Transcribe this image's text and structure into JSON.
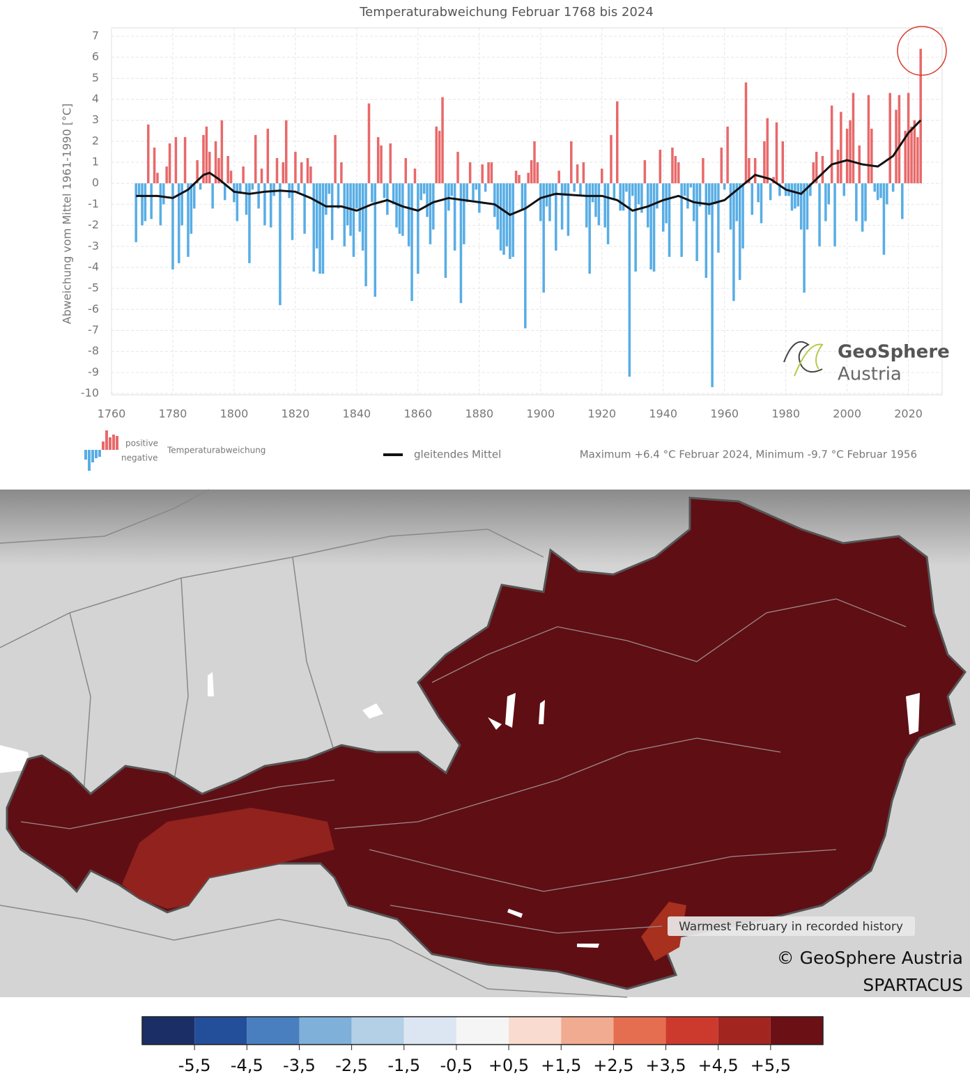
{
  "chart_data": {
    "type": "bar",
    "title": "Temperaturabweichung Februar 1768 bis 2024",
    "y_label": "Abweichung vom Mittel 1961-1990 [°C]",
    "note": "Maximum +6.4 °C Februar 2024, Minimum -9.7 °C Februar 1956",
    "logo_text": "GeoSphere",
    "logo_subtext": "Austria",
    "xlim": [
      1760,
      2031
    ],
    "xticks": [
      1760,
      1780,
      1800,
      1820,
      1840,
      1860,
      1880,
      1900,
      1920,
      1940,
      1960,
      1980,
      2000,
      2020
    ],
    "ylim": [
      -10,
      7
    ],
    "yticks": [
      -10,
      -9,
      -8,
      -7,
      -6,
      -5,
      -4,
      -3,
      -2,
      -1,
      0,
      1,
      2,
      3,
      4,
      5,
      6,
      7
    ],
    "grid": true,
    "series": [
      {
        "name": "Temperaturabweichung",
        "positive_label": "positive",
        "negative_label": "negative",
        "positive_color": "#e8696a",
        "negative_color": "#58ade5",
        "x": [
          1768,
          1769,
          1770,
          1771,
          1772,
          1773,
          1774,
          1775,
          1776,
          1777,
          1778,
          1779,
          1780,
          1781,
          1782,
          1783,
          1784,
          1785,
          1786,
          1787,
          1788,
          1789,
          1790,
          1791,
          1792,
          1793,
          1794,
          1795,
          1796,
          1797,
          1798,
          1799,
          1800,
          1801,
          1802,
          1803,
          1804,
          1805,
          1806,
          1807,
          1808,
          1809,
          1810,
          1811,
          1812,
          1813,
          1814,
          1815,
          1816,
          1817,
          1818,
          1819,
          1820,
          1821,
          1822,
          1823,
          1824,
          1825,
          1826,
          1827,
          1828,
          1829,
          1830,
          1831,
          1832,
          1833,
          1834,
          1835,
          1836,
          1837,
          1838,
          1839,
          1840,
          1841,
          1842,
          1843,
          1844,
          1845,
          1846,
          1847,
          1848,
          1849,
          1850,
          1851,
          1852,
          1853,
          1854,
          1855,
          1856,
          1857,
          1858,
          1859,
          1860,
          1861,
          1862,
          1863,
          1864,
          1865,
          1866,
          1867,
          1868,
          1869,
          1870,
          1871,
          1872,
          1873,
          1874,
          1875,
          1876,
          1877,
          1878,
          1879,
          1880,
          1881,
          1882,
          1883,
          1884,
          1885,
          1886,
          1887,
          1888,
          1889,
          1890,
          1891,
          1892,
          1893,
          1894,
          1895,
          1896,
          1897,
          1898,
          1899,
          1900,
          1901,
          1902,
          1903,
          1904,
          1905,
          1906,
          1907,
          1908,
          1909,
          1910,
          1911,
          1912,
          1913,
          1914,
          1915,
          1916,
          1917,
          1918,
          1919,
          1920,
          1921,
          1922,
          1923,
          1924,
          1925,
          1926,
          1927,
          1928,
          1929,
          1930,
          1931,
          1932,
          1933,
          1934,
          1935,
          1936,
          1937,
          1938,
          1939,
          1940,
          1941,
          1942,
          1943,
          1944,
          1945,
          1946,
          1947,
          1948,
          1949,
          1950,
          1951,
          1952,
          1953,
          1954,
          1955,
          1956,
          1957,
          1958,
          1959,
          1960,
          1961,
          1962,
          1963,
          1964,
          1965,
          1966,
          1967,
          1968,
          1969,
          1970,
          1971,
          1972,
          1973,
          1974,
          1975,
          1976,
          1977,
          1978,
          1979,
          1980,
          1981,
          1982,
          1983,
          1984,
          1985,
          1986,
          1987,
          1988,
          1989,
          1990,
          1991,
          1992,
          1993,
          1994,
          1995,
          1996,
          1997,
          1998,
          1999,
          2000,
          2001,
          2002,
          2003,
          2004,
          2005,
          2006,
          2007,
          2008,
          2009,
          2010,
          2011,
          2012,
          2013,
          2014,
          2015,
          2016,
          2017,
          2018,
          2019,
          2020,
          2021,
          2022,
          2023,
          2024
        ],
        "values": [
          -2.8,
          -0.6,
          -2.0,
          -1.8,
          2.8,
          -1.7,
          1.7,
          0.5,
          -2.0,
          -1.0,
          0.8,
          1.9,
          -4.1,
          2.2,
          -3.8,
          -2.0,
          2.2,
          -3.5,
          -2.4,
          -1.2,
          1.1,
          -0.3,
          2.3,
          2.7,
          1.5,
          -1.2,
          2.0,
          1.2,
          3.0,
          -0.8,
          1.3,
          0.6,
          -0.9,
          -1.8,
          -0.5,
          0.8,
          -1.5,
          -3.8,
          -0.3,
          2.3,
          -1.2,
          0.7,
          -2.0,
          2.6,
          -2.1,
          -0.6,
          1.2,
          -5.8,
          1.0,
          3.0,
          -0.7,
          -2.7,
          1.5,
          -0.4,
          1.0,
          -2.4,
          1.2,
          0.8,
          -4.2,
          -3.1,
          -4.3,
          -4.3,
          -1.5,
          -0.5,
          -2.7,
          2.3,
          -1.2,
          1.0,
          -3.0,
          -2.0,
          -2.5,
          -3.5,
          -1.2,
          -2.3,
          -3.2,
          -4.9,
          3.8,
          -0.9,
          -5.4,
          2.2,
          1.8,
          -0.7,
          -1.5,
          1.9,
          -1.0,
          -2.1,
          -2.4,
          -2.5,
          1.2,
          -3.0,
          -5.6,
          0.7,
          -4.3,
          -0.8,
          -0.5,
          -1.6,
          -2.9,
          -2.2,
          2.7,
          2.5,
          4.1,
          -4.5,
          -1.3,
          -0.6,
          -3.2,
          1.5,
          -5.7,
          -2.9,
          -0.9,
          1.0,
          -0.8,
          -0.3,
          -1.4,
          0.9,
          -0.4,
          1.0,
          1.0,
          -1.6,
          -2.2,
          -3.2,
          -3.4,
          -3.0,
          -3.6,
          -3.5,
          0.6,
          0.4,
          -1.3,
          -6.9,
          0.5,
          1.1,
          2.0,
          1.0,
          -1.8,
          -5.2,
          -1.1,
          -1.8,
          -0.5,
          -3.2,
          0.6,
          -2.2,
          -0.6,
          -2.5,
          2.0,
          -0.4,
          0.9,
          -0.6,
          1.0,
          -2.1,
          -4.3,
          -0.9,
          -1.6,
          -2.0,
          0.7,
          -2.1,
          -2.9,
          2.3,
          -0.8,
          3.9,
          -1.3,
          -1.3,
          -0.4,
          -9.2,
          -0.6,
          -4.2,
          -1.0,
          -1.4,
          1.1,
          -2.1,
          -4.1,
          -4.2,
          -1.2,
          1.6,
          -2.3,
          -1.9,
          -3.5,
          1.7,
          1.3,
          1.0,
          -3.5,
          -0.6,
          -1.2,
          -0.2,
          -1.8,
          -3.7,
          -1.1,
          1.2,
          -4.5,
          -1.5,
          -9.7,
          -1.0,
          -3.3,
          1.7,
          -0.3,
          2.7,
          -2.2,
          -5.6,
          -1.8,
          -4.6,
          -3.1,
          4.8,
          1.2,
          -1.5,
          1.2,
          -0.9,
          -1.9,
          2.0,
          3.1,
          -0.8,
          0.3,
          2.9,
          -0.6,
          2.0,
          -0.6,
          -0.6,
          -1.3,
          -1.2,
          -1.1,
          -2.2,
          -5.2,
          -2.2,
          -0.6,
          1.0,
          1.5,
          -3.0,
          1.3,
          -1.8,
          -1.0,
          3.7,
          -3.0,
          1.6,
          3.4,
          -0.6,
          2.6,
          3.0,
          4.3,
          -1.8,
          1.8,
          -2.3,
          -1.8,
          4.2,
          2.6,
          -0.4,
          -0.8,
          -0.7,
          -3.4,
          -1.0,
          4.3,
          -0.4,
          3.5,
          4.2,
          -1.7,
          2.5,
          4.3,
          2.7,
          3.0,
          2.2,
          6.4
        ]
      },
      {
        "name": "gleitendes Mittel",
        "type": "line",
        "color": "#111111",
        "x": [
          1768,
          1775,
          1780,
          1785,
          1790,
          1792,
          1795,
          1800,
          1805,
          1810,
          1815,
          1820,
          1825,
          1830,
          1835,
          1840,
          1845,
          1850,
          1855,
          1860,
          1865,
          1870,
          1875,
          1880,
          1885,
          1890,
          1895,
          1900,
          1905,
          1910,
          1915,
          1920,
          1925,
          1930,
          1935,
          1940,
          1945,
          1950,
          1955,
          1960,
          1965,
          1970,
          1975,
          1980,
          1985,
          1990,
          1995,
          2000,
          2005,
          2010,
          2015,
          2020,
          2024
        ],
        "values": [
          -0.6,
          -0.6,
          -0.7,
          -0.3,
          0.4,
          0.5,
          0.2,
          -0.4,
          -0.5,
          -0.4,
          -0.35,
          -0.4,
          -0.7,
          -1.1,
          -1.1,
          -1.3,
          -1.0,
          -0.8,
          -1.1,
          -1.3,
          -0.9,
          -0.7,
          -0.8,
          -0.9,
          -1.0,
          -1.5,
          -1.2,
          -0.7,
          -0.5,
          -0.55,
          -0.6,
          -0.6,
          -0.8,
          -1.3,
          -1.1,
          -0.8,
          -0.6,
          -0.9,
          -1.0,
          -0.8,
          -0.2,
          0.4,
          0.2,
          -0.3,
          -0.5,
          0.2,
          0.9,
          1.1,
          0.9,
          0.8,
          1.3,
          2.4,
          3.0
        ]
      }
    ]
  },
  "map": {
    "annotation": "Warmest February in recorded history",
    "credit": "© GeoSphere Austria",
    "source": "SPARTACUS",
    "colorbar": {
      "lim": [
        -6.5,
        6.5
      ],
      "colors": [
        "#1b2f66",
        "#234e99",
        "#4a7fbf",
        "#7fb0d9",
        "#b3d0e6",
        "#dce6f2",
        "#f5f5f5",
        "#fadbcf",
        "#f0ab90",
        "#e66e50",
        "#cc3a2e",
        "#a3251f",
        "#6b1015"
      ],
      "ticks": [
        {
          "value": -5.5,
          "label": "-5,5"
        },
        {
          "value": -4.5,
          "label": "-4,5"
        },
        {
          "value": -3.5,
          "label": "-3,5"
        },
        {
          "value": -2.5,
          "label": "-2,5"
        },
        {
          "value": -1.5,
          "label": "-1,5"
        },
        {
          "value": -0.5,
          "label": "-0,5"
        },
        {
          "value": 0.5,
          "label": "+0,5"
        },
        {
          "value": 1.5,
          "label": "+1,5"
        },
        {
          "value": 2.5,
          "label": "+2,5"
        },
        {
          "value": 3.5,
          "label": "+3,5"
        },
        {
          "value": 4.5,
          "label": "+4,5"
        },
        {
          "value": 5.5,
          "label": "+5,5"
        }
      ]
    }
  }
}
